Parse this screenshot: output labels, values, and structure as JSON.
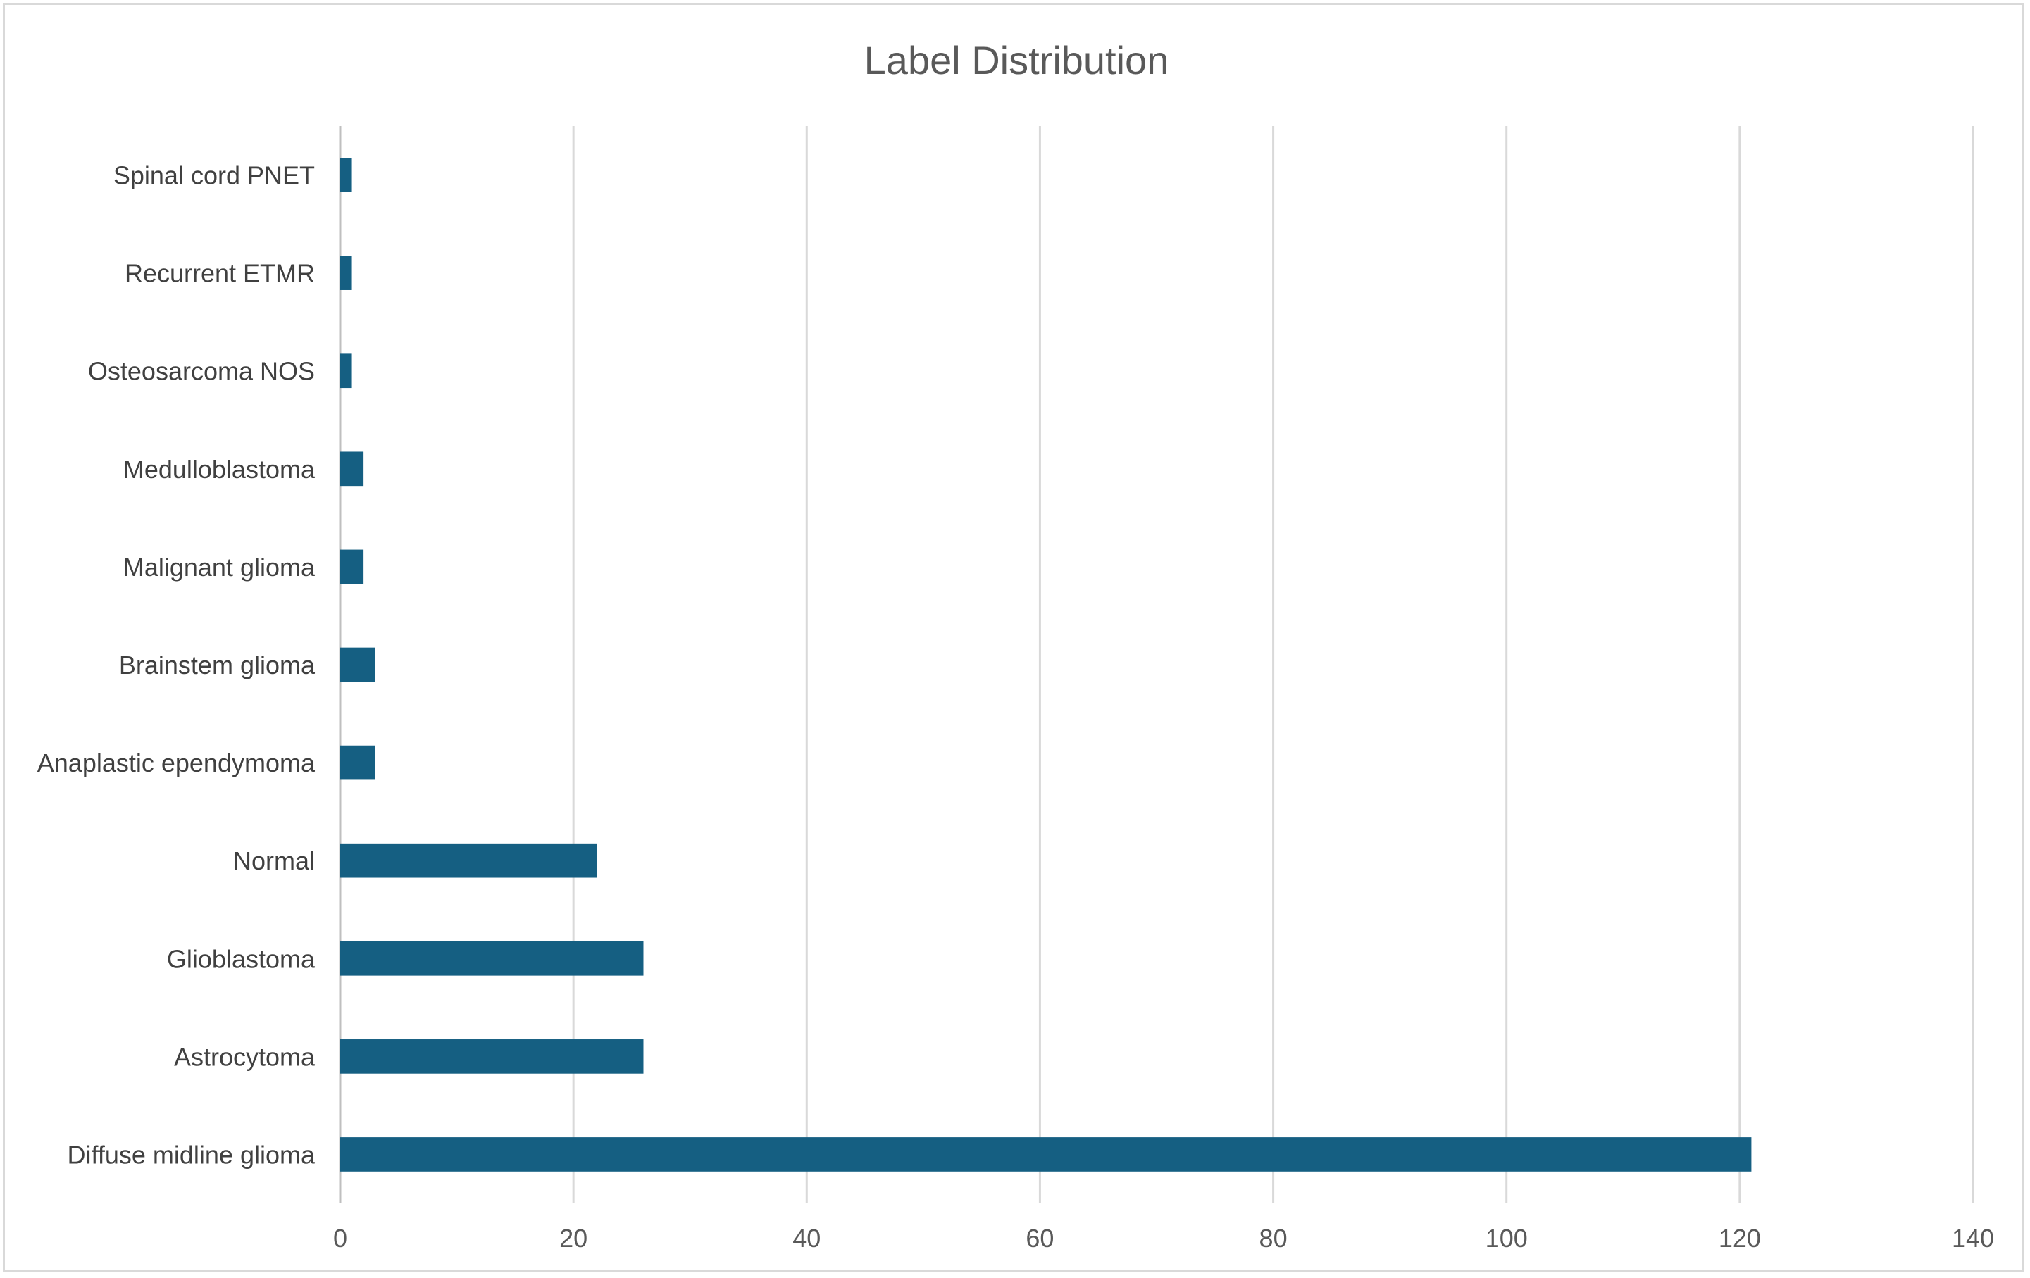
{
  "chart_data": {
    "type": "bar",
    "orientation": "horizontal",
    "title": "Label Distribution",
    "xlabel": "",
    "ylabel": "",
    "categories": [
      "Diffuse midline glioma",
      "Astrocytoma",
      "Glioblastoma",
      "Normal",
      "Anaplastic ependymoma",
      "Brainstem glioma",
      "Malignant glioma",
      "Medulloblastoma",
      "Osteosarcoma NOS",
      "Recurrent ETMR",
      "Spinal cord PNET"
    ],
    "values": [
      121,
      26,
      26,
      22,
      3,
      3,
      2,
      2,
      1,
      1,
      1
    ],
    "xlim": [
      0,
      140
    ],
    "xticks": [
      0,
      20,
      40,
      60,
      80,
      100,
      120,
      140
    ],
    "grid": "vertical",
    "legend": "none",
    "bar_color": "#155f82"
  }
}
